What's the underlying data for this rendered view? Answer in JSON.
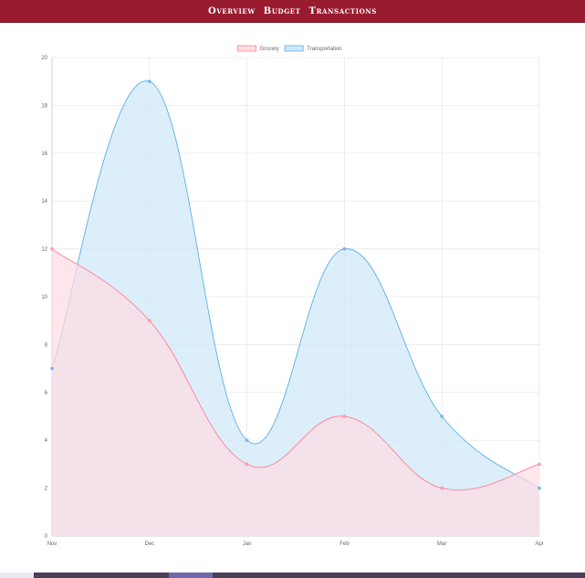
{
  "nav": {
    "items": [
      "Overview",
      "Budget",
      "Transactions"
    ]
  },
  "chart_data": {
    "type": "area",
    "categories": [
      "Nov",
      "Dec",
      "Jan",
      "Feb",
      "Mar",
      "Apr"
    ],
    "series": [
      {
        "name": "Grocery",
        "values": [
          12,
          9,
          3,
          5,
          2,
          3
        ],
        "fill": "#ffdde3",
        "stroke": "#ff7f96",
        "point": "#ffa4b4"
      },
      {
        "name": "Transportation",
        "values": [
          7,
          19,
          4,
          12,
          5,
          2
        ],
        "fill": "#cfe8f8",
        "stroke": "#5aafe6",
        "point": "#7fb8ec"
      }
    ],
    "ylim": [
      0,
      20
    ],
    "yticks": [
      0,
      2,
      4,
      6,
      8,
      10,
      12,
      14,
      16,
      18,
      20
    ],
    "legend_position": "top-center",
    "grid": true
  },
  "colors": {
    "nav_bg": "#981b2f",
    "grid": "#e6e6e6",
    "axis": "#cfcfcf"
  }
}
